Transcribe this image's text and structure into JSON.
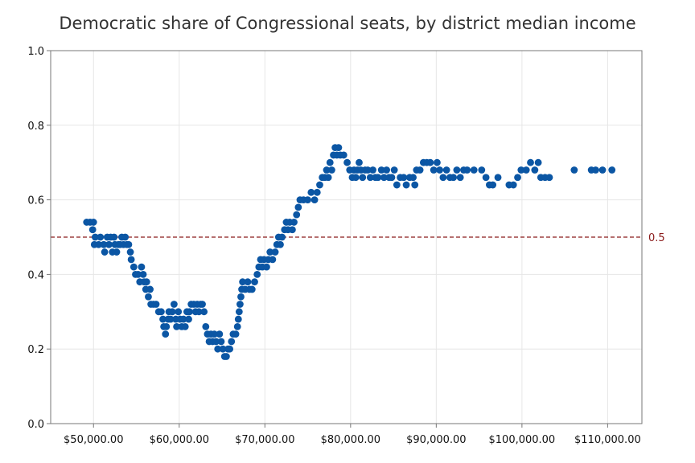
{
  "colors": {
    "point": "#0b56a4",
    "reference": "#8b1a1a",
    "grid": "#e6e6e6",
    "axis": "#777777"
  },
  "chart_data": {
    "type": "scatter",
    "title": "Democratic share of Congressional seats, by district median income",
    "xlabel": "",
    "ylabel": "",
    "xlim": [
      45000,
      114000
    ],
    "ylim": [
      0,
      1
    ],
    "x_ticks": [
      50000,
      60000,
      70000,
      80000,
      90000,
      100000,
      110000
    ],
    "x_tick_labels": [
      "$50,000.00",
      "$60,000.00",
      "$70,000.00",
      "$80,000.00",
      "$90,000.00",
      "$100,000.00",
      "$110,000.00"
    ],
    "y_ticks": [
      0,
      0.2,
      0.4,
      0.6,
      0.8,
      1.0
    ],
    "y_tick_labels": [
      "0.0",
      "0.2",
      "0.4",
      "0.6",
      "0.8",
      "1.0"
    ],
    "grid": true,
    "reference_line": {
      "y": 0.5,
      "label": "0.5",
      "style": "dashed"
    },
    "series": [
      {
        "points": [
          [
            49200,
            0.54
          ],
          [
            49600,
            0.54
          ],
          [
            50000,
            0.54
          ],
          [
            49900,
            0.52
          ],
          [
            50200,
            0.5
          ],
          [
            50100,
            0.48
          ],
          [
            50600,
            0.48
          ],
          [
            50800,
            0.5
          ],
          [
            51200,
            0.48
          ],
          [
            51300,
            0.46
          ],
          [
            51600,
            0.5
          ],
          [
            51800,
            0.48
          ],
          [
            52000,
            0.5
          ],
          [
            52200,
            0.46
          ],
          [
            52400,
            0.5
          ],
          [
            52500,
            0.48
          ],
          [
            52700,
            0.46
          ],
          [
            52900,
            0.48
          ],
          [
            53100,
            0.48
          ],
          [
            53300,
            0.5
          ],
          [
            53500,
            0.48
          ],
          [
            53700,
            0.5
          ],
          [
            53900,
            0.48
          ],
          [
            54100,
            0.48
          ],
          [
            54300,
            0.46
          ],
          [
            54400,
            0.44
          ],
          [
            54700,
            0.42
          ],
          [
            54900,
            0.4
          ],
          [
            55200,
            0.4
          ],
          [
            55400,
            0.38
          ],
          [
            55600,
            0.42
          ],
          [
            55800,
            0.4
          ],
          [
            55900,
            0.38
          ],
          [
            56100,
            0.36
          ],
          [
            56200,
            0.38
          ],
          [
            56400,
            0.34
          ],
          [
            56600,
            0.36
          ],
          [
            56700,
            0.32
          ],
          [
            57000,
            0.32
          ],
          [
            57300,
            0.32
          ],
          [
            57600,
            0.3
          ],
          [
            57900,
            0.3
          ],
          [
            58100,
            0.28
          ],
          [
            58200,
            0.26
          ],
          [
            58400,
            0.24
          ],
          [
            58500,
            0.26
          ],
          [
            58700,
            0.28
          ],
          [
            58800,
            0.3
          ],
          [
            59000,
            0.28
          ],
          [
            59200,
            0.3
          ],
          [
            59400,
            0.32
          ],
          [
            59600,
            0.28
          ],
          [
            59700,
            0.26
          ],
          [
            59900,
            0.3
          ],
          [
            60100,
            0.28
          ],
          [
            60300,
            0.26
          ],
          [
            60500,
            0.28
          ],
          [
            60700,
            0.26
          ],
          [
            60900,
            0.3
          ],
          [
            61100,
            0.28
          ],
          [
            61200,
            0.3
          ],
          [
            61400,
            0.32
          ],
          [
            61700,
            0.32
          ],
          [
            61900,
            0.3
          ],
          [
            62100,
            0.32
          ],
          [
            62300,
            0.3
          ],
          [
            62500,
            0.32
          ],
          [
            62700,
            0.32
          ],
          [
            62900,
            0.3
          ],
          [
            63100,
            0.26
          ],
          [
            63300,
            0.24
          ],
          [
            63500,
            0.22
          ],
          [
            63700,
            0.24
          ],
          [
            63900,
            0.22
          ],
          [
            64100,
            0.24
          ],
          [
            64300,
            0.22
          ],
          [
            64500,
            0.2
          ],
          [
            64700,
            0.24
          ],
          [
            64900,
            0.22
          ],
          [
            65100,
            0.2
          ],
          [
            65300,
            0.18
          ],
          [
            65500,
            0.18
          ],
          [
            65700,
            0.2
          ],
          [
            65900,
            0.2
          ],
          [
            66100,
            0.22
          ],
          [
            66300,
            0.24
          ],
          [
            66600,
            0.24
          ],
          [
            66800,
            0.26
          ],
          [
            66900,
            0.28
          ],
          [
            67000,
            0.3
          ],
          [
            67100,
            0.32
          ],
          [
            67200,
            0.34
          ],
          [
            67300,
            0.36
          ],
          [
            67400,
            0.38
          ],
          [
            67700,
            0.36
          ],
          [
            68000,
            0.38
          ],
          [
            68200,
            0.36
          ],
          [
            68500,
            0.36
          ],
          [
            68800,
            0.38
          ],
          [
            69100,
            0.4
          ],
          [
            69300,
            0.42
          ],
          [
            69500,
            0.44
          ],
          [
            69700,
            0.42
          ],
          [
            69900,
            0.44
          ],
          [
            70200,
            0.42
          ],
          [
            70400,
            0.44
          ],
          [
            70600,
            0.46
          ],
          [
            70900,
            0.44
          ],
          [
            71200,
            0.46
          ],
          [
            71400,
            0.48
          ],
          [
            71600,
            0.5
          ],
          [
            71800,
            0.48
          ],
          [
            72000,
            0.5
          ],
          [
            72300,
            0.52
          ],
          [
            72500,
            0.54
          ],
          [
            72700,
            0.52
          ],
          [
            72900,
            0.54
          ],
          [
            73200,
            0.52
          ],
          [
            73400,
            0.54
          ],
          [
            73700,
            0.56
          ],
          [
            73900,
            0.58
          ],
          [
            74100,
            0.6
          ],
          [
            74500,
            0.6
          ],
          [
            75000,
            0.6
          ],
          [
            75400,
            0.62
          ],
          [
            75800,
            0.6
          ],
          [
            76100,
            0.62
          ],
          [
            76400,
            0.64
          ],
          [
            76700,
            0.66
          ],
          [
            77000,
            0.66
          ],
          [
            77200,
            0.68
          ],
          [
            77400,
            0.66
          ],
          [
            77600,
            0.7
          ],
          [
            77800,
            0.68
          ],
          [
            78000,
            0.72
          ],
          [
            78200,
            0.74
          ],
          [
            78400,
            0.72
          ],
          [
            78600,
            0.74
          ],
          [
            78800,
            0.72
          ],
          [
            79200,
            0.72
          ],
          [
            79600,
            0.7
          ],
          [
            79900,
            0.68
          ],
          [
            80200,
            0.66
          ],
          [
            80400,
            0.68
          ],
          [
            80600,
            0.66
          ],
          [
            80800,
            0.68
          ],
          [
            81000,
            0.7
          ],
          [
            81200,
            0.68
          ],
          [
            81400,
            0.66
          ],
          [
            81700,
            0.68
          ],
          [
            82000,
            0.68
          ],
          [
            82300,
            0.66
          ],
          [
            82600,
            0.68
          ],
          [
            82900,
            0.66
          ],
          [
            83200,
            0.66
          ],
          [
            83600,
            0.68
          ],
          [
            83900,
            0.66
          ],
          [
            84200,
            0.68
          ],
          [
            84500,
            0.66
          ],
          [
            84800,
            0.66
          ],
          [
            85100,
            0.68
          ],
          [
            85400,
            0.64
          ],
          [
            85800,
            0.66
          ],
          [
            86200,
            0.66
          ],
          [
            86500,
            0.64
          ],
          [
            86900,
            0.66
          ],
          [
            87300,
            0.66
          ],
          [
            87700,
            0.68
          ],
          [
            87500,
            0.64
          ],
          [
            88100,
            0.68
          ],
          [
            88500,
            0.7
          ],
          [
            88900,
            0.7
          ],
          [
            89300,
            0.7
          ],
          [
            89700,
            0.68
          ],
          [
            90100,
            0.7
          ],
          [
            90400,
            0.68
          ],
          [
            90800,
            0.66
          ],
          [
            91200,
            0.68
          ],
          [
            91600,
            0.66
          ],
          [
            92000,
            0.66
          ],
          [
            92400,
            0.68
          ],
          [
            92800,
            0.66
          ],
          [
            93200,
            0.68
          ],
          [
            93600,
            0.68
          ],
          [
            94400,
            0.68
          ],
          [
            95300,
            0.68
          ],
          [
            95800,
            0.66
          ],
          [
            96200,
            0.64
          ],
          [
            96600,
            0.64
          ],
          [
            97200,
            0.66
          ],
          [
            98500,
            0.64
          ],
          [
            99000,
            0.64
          ],
          [
            99500,
            0.66
          ],
          [
            99900,
            0.68
          ],
          [
            100500,
            0.68
          ],
          [
            101000,
            0.7
          ],
          [
            101500,
            0.68
          ],
          [
            101900,
            0.7
          ],
          [
            102200,
            0.66
          ],
          [
            102700,
            0.66
          ],
          [
            103200,
            0.66
          ],
          [
            106100,
            0.68
          ],
          [
            108100,
            0.68
          ],
          [
            108600,
            0.68
          ],
          [
            109400,
            0.68
          ],
          [
            110500,
            0.68
          ]
        ]
      }
    ]
  }
}
